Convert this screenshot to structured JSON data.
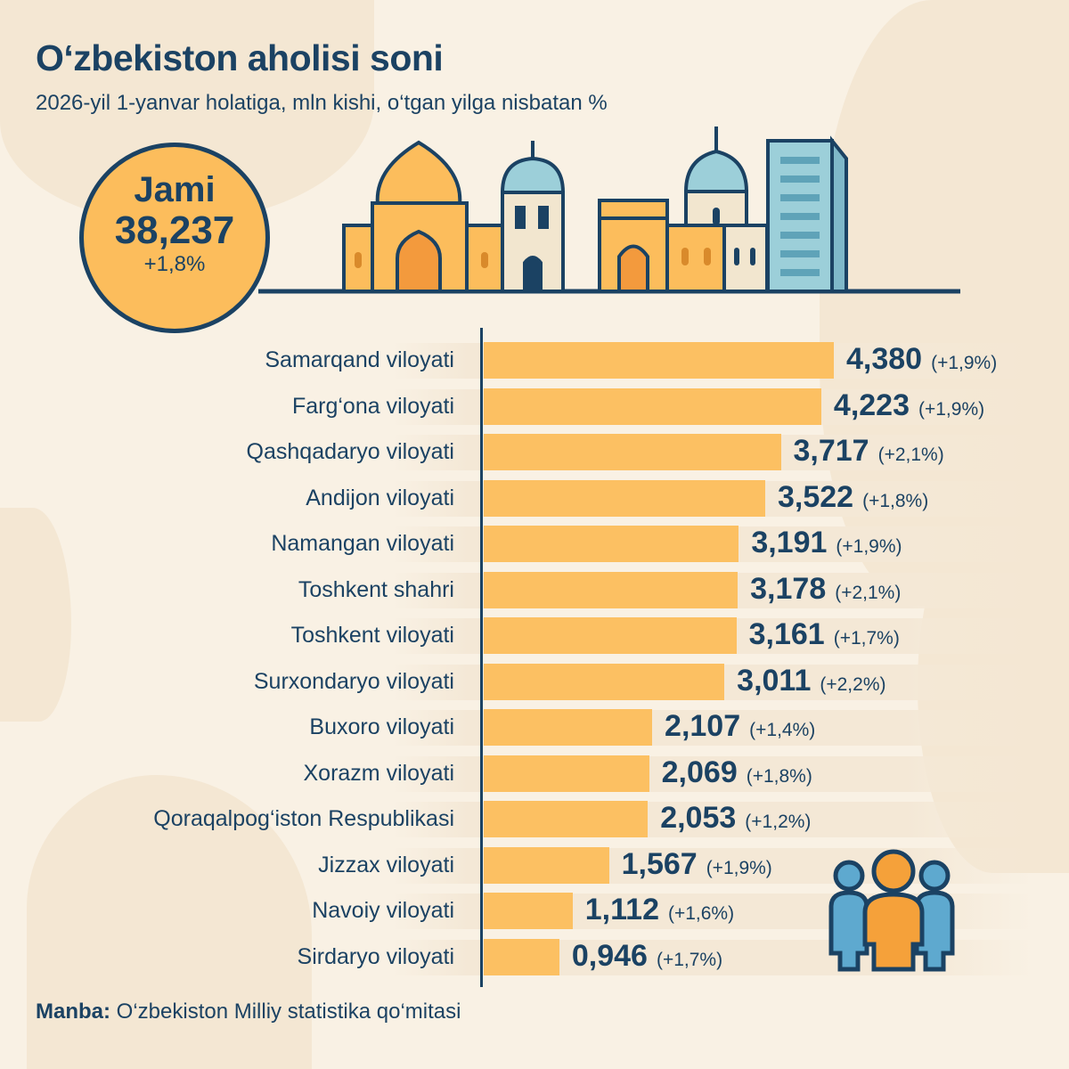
{
  "title": "O‘zbekiston aholisi soni",
  "subtitle": "2026-yil 1-yanvar holatiga, mln kishi, o‘tgan yilga nisbatan %",
  "total": {
    "label": "Jami",
    "value": "38,237",
    "change": "+1,8%"
  },
  "colors": {
    "bar": "#fcc062",
    "text": "#1b4263",
    "background": "#f9f1e4",
    "accent_blue": "#8fc7d6"
  },
  "icons": [
    "skyline-illustration",
    "people-icon"
  ],
  "chart_data": {
    "type": "bar",
    "orientation": "horizontal",
    "categories": [
      "Samarqand viloyati",
      "Farg‘ona viloyati",
      "Qashqadaryo viloyati",
      "Andijon viloyati",
      "Namangan viloyati",
      "Toshkent shahri",
      "Toshkent viloyati",
      "Surxondaryo viloyati",
      "Buxoro viloyati",
      "Xorazm viloyati",
      "Qoraqalpog‘iston Respublikasi",
      "Jizzax viloyati",
      "Navoiy viloyati",
      "Sirdaryo viloyati"
    ],
    "values": [
      4.38,
      4.223,
      3.717,
      3.522,
      3.191,
      3.178,
      3.161,
      3.011,
      2.107,
      2.069,
      2.053,
      1.567,
      1.112,
      0.946
    ],
    "value_labels": [
      "4,380",
      "4,223",
      "3,717",
      "3,522",
      "3,191",
      "3,178",
      "3,161",
      "3,011",
      "2,107",
      "2,069",
      "2,053",
      "1,567",
      "1,112",
      "0,946"
    ],
    "change_labels": [
      "(+1,9%)",
      "(+1,9%)",
      "(+2,1%)",
      "(+1,8%)",
      "(+1,9%)",
      "(+2,1%)",
      "(+1,7%)",
      "(+2,2%)",
      "(+1,4%)",
      "(+1,8%)",
      "(+1,2%)",
      "(+1,9%)",
      "(+1,6%)",
      "(+1,7%)"
    ],
    "xlim": [
      0,
      4.38
    ],
    "grid": false
  },
  "source": {
    "label": "Manba:",
    "text": "O‘zbekiston Milliy statistika qo‘mitasi"
  }
}
